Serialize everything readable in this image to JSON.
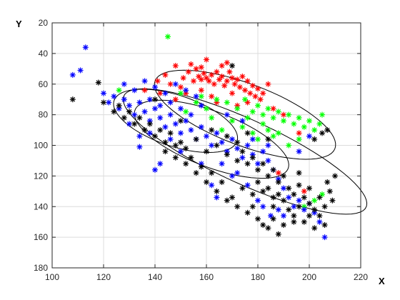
{
  "chart_data": {
    "type": "scatter",
    "xlabel": "X",
    "ylabel": "Y",
    "xlim": [
      100,
      220
    ],
    "ylim": [
      20,
      180
    ],
    "y_direction": "reversed",
    "xticks": [
      "100",
      "120",
      "140",
      "160",
      "180",
      "200",
      "220"
    ],
    "yticks": [
      "20",
      "40",
      "60",
      "80",
      "100",
      "120",
      "140",
      "160",
      "180"
    ],
    "grid": true,
    "marker": "asterisk",
    "series": [
      {
        "color": "#ff0000",
        "points": [
          [
            148,
            48
          ],
          [
            151,
            56
          ],
          [
            153,
            52
          ],
          [
            155,
            58
          ],
          [
            156,
            50
          ],
          [
            157,
            55
          ],
          [
            158,
            57
          ],
          [
            159,
            53
          ],
          [
            160,
            56
          ],
          [
            161,
            58
          ],
          [
            162,
            54
          ],
          [
            163,
            60
          ],
          [
            164,
            52
          ],
          [
            165,
            57
          ],
          [
            166,
            55
          ],
          [
            167,
            61
          ],
          [
            168,
            58
          ],
          [
            169,
            52
          ],
          [
            170,
            56
          ],
          [
            171,
            60
          ],
          [
            172,
            57
          ],
          [
            173,
            62
          ],
          [
            174,
            55
          ],
          [
            175,
            64
          ],
          [
            176,
            58
          ],
          [
            177,
            66
          ],
          [
            178,
            61
          ],
          [
            179,
            68
          ],
          [
            180,
            63
          ],
          [
            181,
            70
          ],
          [
            150,
            62
          ],
          [
            152,
            66
          ],
          [
            158,
            64
          ],
          [
            162,
            68
          ],
          [
            168,
            46
          ],
          [
            160,
            44
          ],
          [
            154,
            47
          ],
          [
            146,
            60
          ],
          [
            141,
            58
          ],
          [
            136,
            64
          ],
          [
            142,
            66
          ],
          [
            148,
            70
          ],
          [
            164,
            72
          ],
          [
            172,
            74
          ],
          [
            184,
            60
          ],
          [
            186,
            76
          ],
          [
            190,
            80
          ],
          [
            196,
            92
          ],
          [
            158,
            49
          ],
          [
            170,
            66
          ],
          [
            166,
            48
          ],
          [
            176,
            72
          ],
          [
            182,
            66
          ],
          [
            198,
            130
          ],
          [
            188,
            118
          ],
          [
            144,
            54
          ]
        ]
      },
      {
        "color": "#00ff00",
        "points": [
          [
            145,
            29
          ],
          [
            168,
            72
          ],
          [
            172,
            76
          ],
          [
            175,
            70
          ],
          [
            178,
            78
          ],
          [
            180,
            74
          ],
          [
            182,
            80
          ],
          [
            184,
            76
          ],
          [
            186,
            82
          ],
          [
            188,
            78
          ],
          [
            190,
            84
          ],
          [
            192,
            80
          ],
          [
            194,
            86
          ],
          [
            196,
            82
          ],
          [
            198,
            88
          ],
          [
            200,
            84
          ],
          [
            202,
            90
          ],
          [
            204,
            86
          ],
          [
            205,
            80
          ],
          [
            170,
            84
          ],
          [
            174,
            88
          ],
          [
            178,
            92
          ],
          [
            182,
            86
          ],
          [
            176,
            82
          ],
          [
            164,
            70
          ],
          [
            160,
            76
          ],
          [
            156,
            72
          ],
          [
            152,
            78
          ],
          [
            150,
            66
          ],
          [
            126,
            64
          ],
          [
            180,
            96
          ],
          [
            186,
            94
          ],
          [
            192,
            100
          ],
          [
            196,
            96
          ],
          [
            166,
            90
          ],
          [
            184,
            90
          ],
          [
            188,
            92
          ],
          [
            198,
            140
          ],
          [
            202,
            136
          ],
          [
            205,
            132
          ],
          [
            158,
            68
          ],
          [
            162,
            82
          ]
        ]
      },
      {
        "color": "#0000ff",
        "points": [
          [
            108,
            54
          ],
          [
            111,
            51
          ],
          [
            113,
            36
          ],
          [
            120,
            66
          ],
          [
            122,
            72
          ],
          [
            124,
            68
          ],
          [
            126,
            76
          ],
          [
            128,
            70
          ],
          [
            130,
            74
          ],
          [
            132,
            80
          ],
          [
            134,
            72
          ],
          [
            136,
            78
          ],
          [
            138,
            84
          ],
          [
            140,
            76
          ],
          [
            142,
            82
          ],
          [
            144,
            88
          ],
          [
            146,
            80
          ],
          [
            148,
            86
          ],
          [
            150,
            92
          ],
          [
            152,
            84
          ],
          [
            154,
            90
          ],
          [
            156,
            96
          ],
          [
            158,
            88
          ],
          [
            160,
            94
          ],
          [
            162,
            100
          ],
          [
            164,
            92
          ],
          [
            166,
            98
          ],
          [
            168,
            104
          ],
          [
            170,
            96
          ],
          [
            172,
            102
          ],
          [
            174,
            108
          ],
          [
            176,
            100
          ],
          [
            178,
            106
          ],
          [
            180,
            112
          ],
          [
            182,
            104
          ],
          [
            184,
            110
          ],
          [
            186,
            116
          ],
          [
            188,
            122
          ],
          [
            190,
            128
          ],
          [
            192,
            134
          ],
          [
            194,
            140
          ],
          [
            196,
            136
          ],
          [
            198,
            142
          ],
          [
            200,
            138
          ],
          [
            202,
            144
          ],
          [
            204,
            150
          ],
          [
            206,
            160
          ],
          [
            128,
            60
          ],
          [
            132,
            64
          ],
          [
            136,
            58
          ],
          [
            140,
            62
          ],
          [
            144,
            66
          ],
          [
            148,
            60
          ],
          [
            152,
            64
          ],
          [
            156,
            68
          ],
          [
            130,
            86
          ],
          [
            134,
            94
          ],
          [
            134,
            101
          ],
          [
            140,
            116
          ],
          [
            142,
            112
          ],
          [
            150,
            104
          ],
          [
            158,
            112
          ],
          [
            162,
            126
          ],
          [
            164,
            134
          ],
          [
            170,
            120
          ],
          [
            176,
            126
          ],
          [
            180,
            136
          ],
          [
            182,
            140
          ],
          [
            185,
            146
          ],
          [
            190,
            146
          ],
          [
            188,
            142
          ],
          [
            138,
            70
          ],
          [
            142,
            74
          ],
          [
            146,
            72
          ],
          [
            150,
            76
          ],
          [
            154,
            80
          ],
          [
            158,
            74
          ],
          [
            138,
            92
          ],
          [
            146,
            96
          ],
          [
            166,
            112
          ],
          [
            172,
            118
          ],
          [
            200,
            94
          ],
          [
            196,
            104
          ],
          [
            174,
            84
          ],
          [
            178,
            96
          ],
          [
            184,
            100
          ],
          [
            168,
            80
          ]
        ]
      },
      {
        "color": "#000000",
        "points": [
          [
            108,
            70
          ],
          [
            118,
            59
          ],
          [
            120,
            72
          ],
          [
            124,
            78
          ],
          [
            128,
            82
          ],
          [
            132,
            86
          ],
          [
            136,
            90
          ],
          [
            140,
            94
          ],
          [
            144,
            98
          ],
          [
            148,
            100
          ],
          [
            152,
            102
          ],
          [
            156,
            96
          ],
          [
            160,
            104
          ],
          [
            164,
            100
          ],
          [
            168,
            106
          ],
          [
            170,
            48
          ],
          [
            172,
            110
          ],
          [
            174,
            104
          ],
          [
            176,
            112
          ],
          [
            178,
            108
          ],
          [
            180,
            116
          ],
          [
            182,
            112
          ],
          [
            184,
            120
          ],
          [
            186,
            116
          ],
          [
            188,
            124
          ],
          [
            190,
            120
          ],
          [
            192,
            128
          ],
          [
            194,
            132
          ],
          [
            196,
            126
          ],
          [
            198,
            134
          ],
          [
            200,
            138
          ],
          [
            202,
            142
          ],
          [
            204,
            146
          ],
          [
            206,
            140
          ],
          [
            208,
            130
          ],
          [
            210,
            120
          ],
          [
            209,
            136
          ],
          [
            206,
            152
          ],
          [
            202,
            154
          ],
          [
            198,
            150
          ],
          [
            194,
            146
          ],
          [
            190,
            152
          ],
          [
            188,
            158
          ],
          [
            184,
            154
          ],
          [
            180,
            148
          ],
          [
            176,
            144
          ],
          [
            172,
            140
          ],
          [
            168,
            136
          ],
          [
            164,
            130
          ],
          [
            160,
            124
          ],
          [
            156,
            118
          ],
          [
            152,
            112
          ],
          [
            148,
            108
          ],
          [
            144,
            104
          ],
          [
            186,
            140
          ],
          [
            190,
            136
          ],
          [
            196,
            140
          ],
          [
            200,
            146
          ],
          [
            204,
            134
          ],
          [
            207,
            124
          ],
          [
            205,
            92
          ],
          [
            207,
            90
          ],
          [
            202,
            96
          ],
          [
            174,
            128
          ],
          [
            178,
            132
          ],
          [
            182,
            130
          ],
          [
            186,
            134
          ],
          [
            180,
            124
          ],
          [
            184,
            128
          ],
          [
            188,
            132
          ],
          [
            192,
            142
          ],
          [
            170,
            134
          ],
          [
            166,
            124
          ],
          [
            162,
            118
          ],
          [
            158,
            114
          ],
          [
            154,
            108
          ],
          [
            150,
            98
          ],
          [
            146,
            92
          ],
          [
            142,
            90
          ],
          [
            138,
            86
          ],
          [
            134,
            82
          ],
          [
            130,
            78
          ],
          [
            126,
            74
          ],
          [
            182,
            152
          ],
          [
            186,
            148
          ],
          [
            194,
            150
          ],
          [
            178,
            140
          ],
          [
            196,
            118
          ],
          [
            200,
            128
          ],
          [
            150,
            84
          ],
          [
            162,
            90
          ],
          [
            176,
            92
          ],
          [
            184,
            96
          ],
          [
            172,
            98
          ],
          [
            168,
            94
          ],
          [
            140,
            70
          ]
        ]
      }
    ],
    "ellipses": [
      {
        "center": [
          175,
          80
        ],
        "semi_axis_major": 42,
        "semi_axis_minor": 18,
        "angle_deg": 37
      },
      {
        "center": [
          175,
          104
        ],
        "semi_axis_major": 60,
        "semi_axis_minor": 18,
        "angle_deg": 40
      },
      {
        "center": [
          148,
          84
        ],
        "semi_axis_major": 28,
        "semi_axis_minor": 15,
        "angle_deg": 37
      },
      {
        "center": [
          162,
          96
        ],
        "semi_axis_major": 36,
        "semi_axis_minor": 16,
        "angle_deg": 38
      }
    ]
  }
}
